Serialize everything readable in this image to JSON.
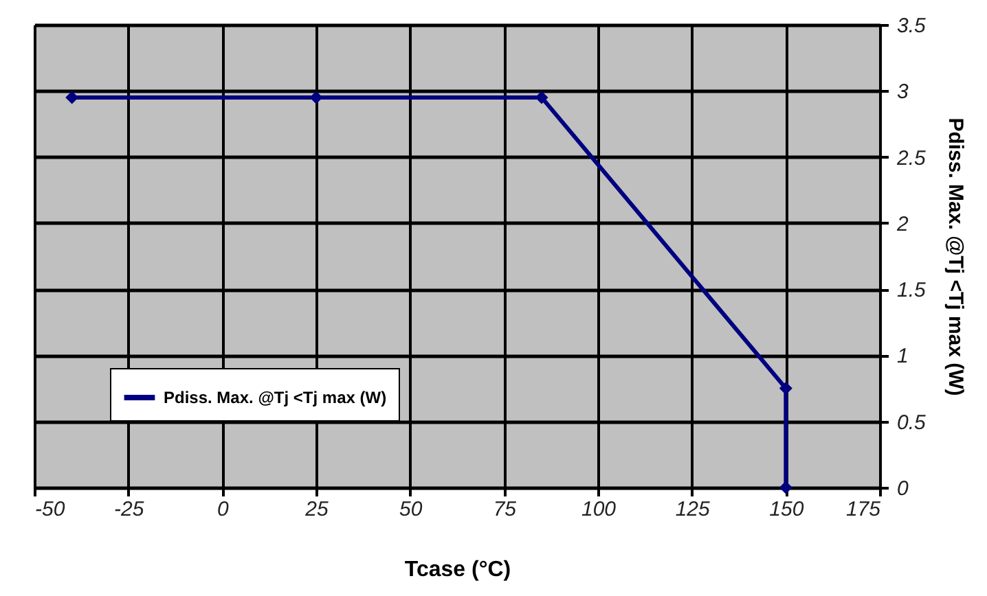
{
  "chart_data": {
    "type": "line",
    "xlabel": "Tcase (°C)",
    "ylabel": "Pdiss. Max. @Tj <Tj max (W)",
    "x": [
      -40,
      25,
      85,
      150,
      150
    ],
    "series": [
      {
        "name": "Pdiss. Max. @Tj <Tj max (W)",
        "color": "#000080",
        "values": [
          2.95,
          2.95,
          2.95,
          0.75,
          0
        ]
      }
    ],
    "xlim": [
      -50,
      175
    ],
    "xticks": [
      -50,
      -25,
      0,
      25,
      50,
      75,
      100,
      125,
      150,
      175
    ],
    "ylim": [
      0,
      3.5
    ],
    "yticks": [
      0,
      0.5,
      1,
      1.5,
      2,
      2.5,
      3,
      3.5
    ],
    "grid": true,
    "legend": "bottom left",
    "marker": "diamond",
    "line_style": "solid"
  }
}
